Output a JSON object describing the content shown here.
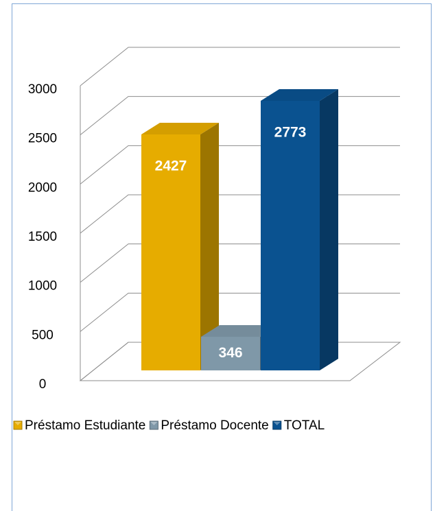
{
  "chart_data": {
    "type": "bar3d",
    "categories": [
      null
    ],
    "series": [
      {
        "name": "Préstamo Estudiante",
        "color": "#e6ac00",
        "values": [
          2427
        ]
      },
      {
        "name": "Préstamo Docente",
        "color": "#7f98a8",
        "values": [
          346
        ]
      },
      {
        "name": "TOTAL",
        "color": "#0a5290",
        "values": [
          2773
        ]
      }
    ],
    "ylim": [
      0,
      3000
    ],
    "yticks": [
      0,
      500,
      1000,
      1500,
      2000,
      2500,
      3000
    ],
    "grid": true,
    "legend": "bottom"
  }
}
